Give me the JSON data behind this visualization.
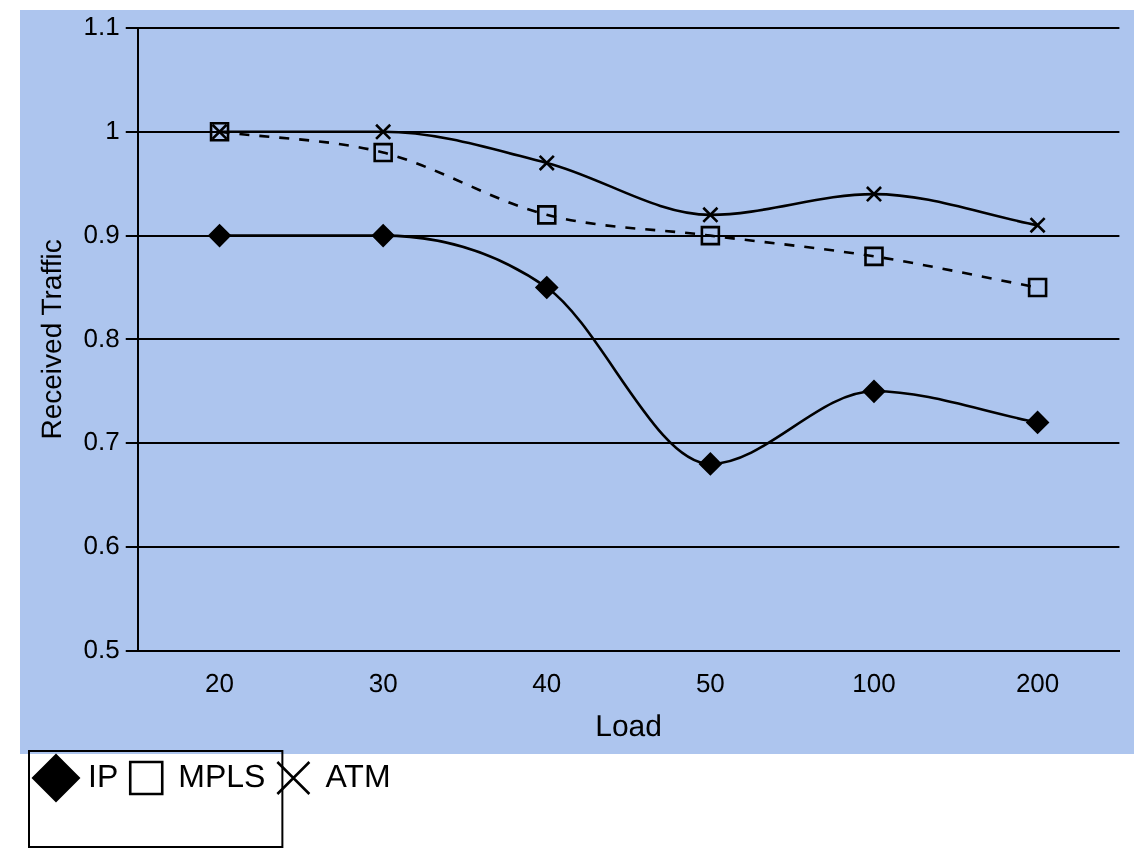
{
  "chart_data": {
    "type": "line",
    "xlabel": "Load",
    "ylabel": "Received Traffic",
    "categories": [
      "20",
      "30",
      "40",
      "50",
      "100",
      "200"
    ],
    "series": [
      {
        "name": "IP",
        "color": "#000000",
        "marker": "diamond",
        "line_style": "solid",
        "values": [
          0.9,
          0.9,
          0.85,
          0.68,
          0.75,
          0.72
        ]
      },
      {
        "name": "MPLS",
        "color": "#000000",
        "marker": "square",
        "line_style": "dashed",
        "values": [
          1,
          0.98,
          0.92,
          0.9,
          0.88,
          0.85
        ]
      },
      {
        "name": "ATM",
        "color": "#000000",
        "marker": "cross",
        "line_style": "solid",
        "values": [
          1,
          1,
          0.97,
          0.92,
          0.94,
          0.91
        ]
      }
    ],
    "ylim": [
      0.5,
      1.1
    ],
    "yticks": [
      0.5,
      0.6,
      0.7,
      0.8,
      0.9,
      1,
      1.1
    ],
    "grid": "y",
    "legend": "bottom left"
  }
}
